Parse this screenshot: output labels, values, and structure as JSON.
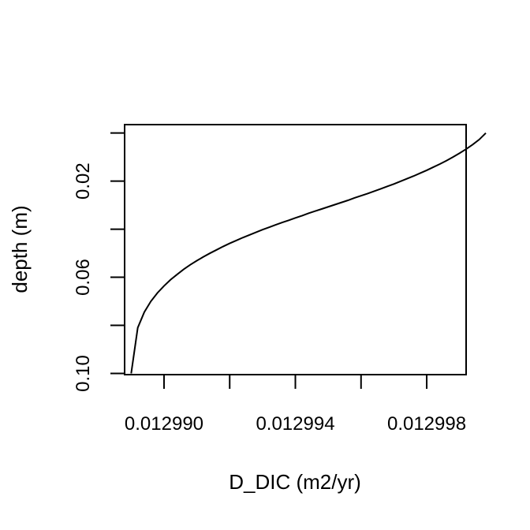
{
  "chart_data": {
    "type": "line",
    "title": "",
    "xlabel": "D_DIC (m2/yr)",
    "ylabel": "depth (m)",
    "xlim": [
      0.0129888,
      0.0129992
    ],
    "ylim": [
      0.1005,
      -0.0035
    ],
    "y_reversed": true,
    "x_ticks": [
      0.01299,
      0.012992,
      0.012994,
      0.012996,
      0.012998
    ],
    "x_tick_labels": [
      "0.012990",
      "",
      "0.012994",
      "",
      "0.012998"
    ],
    "y_ticks": [
      0.0,
      0.02,
      0.04,
      0.06,
      0.08,
      0.1
    ],
    "y_tick_labels": [
      "",
      "0.02",
      "",
      "0.06",
      "",
      "0.10"
    ],
    "series": [
      {
        "x": [
          0.0129998,
          0.0129996,
          0.0129994,
          0.0129992,
          0.012999,
          0.0129988,
          0.0129986,
          0.0129984,
          0.0129982,
          0.012998,
          0.0129978,
          0.0129976,
          0.0129974,
          0.0129972,
          0.012997,
          0.0129968,
          0.0129966,
          0.0129964,
          0.0129962,
          0.012996,
          0.0129958,
          0.0129956,
          0.0129954,
          0.0129952,
          0.012995,
          0.0129948,
          0.0129946,
          0.0129944,
          0.0129942,
          0.012994,
          0.0129938,
          0.0129936,
          0.0129934,
          0.0129932,
          0.012993,
          0.0129928,
          0.0129926,
          0.0129924,
          0.0129922,
          0.012992,
          0.0129918,
          0.0129916,
          0.0129914,
          0.0129912,
          0.012991,
          0.0129908,
          0.0129906,
          0.0129904,
          0.0129902,
          0.01299,
          0.0129898,
          0.0129896,
          0.0129894,
          0.0129892,
          0.012989
        ],
        "y": [
          0.0,
          0.0027,
          0.0048,
          0.0067,
          0.0084,
          0.01,
          0.0115,
          0.0129,
          0.0142,
          0.0155,
          0.0167,
          0.0179,
          0.019,
          0.0201,
          0.0212,
          0.0222,
          0.0232,
          0.0242,
          0.0252,
          0.0261,
          0.027,
          0.028,
          0.0289,
          0.0298,
          0.0307,
          0.0316,
          0.0325,
          0.0334,
          0.0344,
          0.0353,
          0.0363,
          0.0372,
          0.0382,
          0.0392,
          0.0402,
          0.0413,
          0.0424,
          0.0435,
          0.0447,
          0.0459,
          0.0472,
          0.0486,
          0.05,
          0.0515,
          0.0531,
          0.0548,
          0.0567,
          0.0588,
          0.061,
          0.0636,
          0.0665,
          0.07,
          0.0745,
          0.081,
          0.1
        ]
      }
    ]
  }
}
